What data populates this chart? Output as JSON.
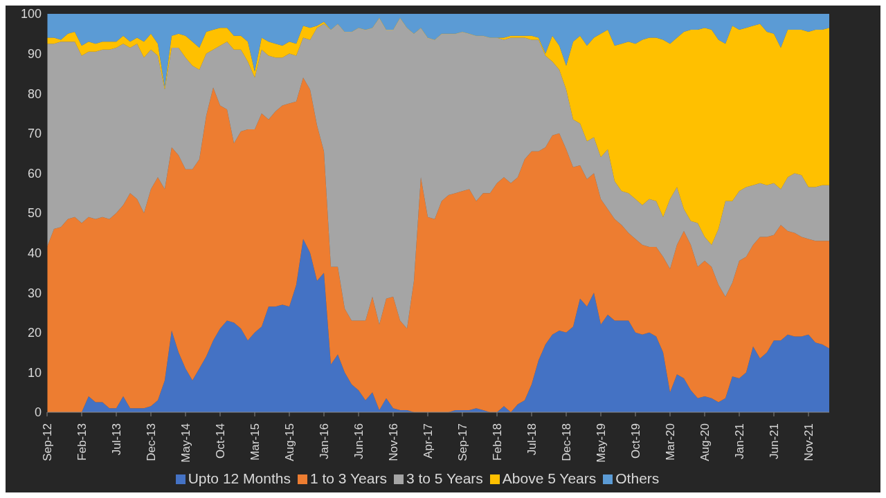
{
  "chart_data": {
    "type": "area",
    "stacked": true,
    "categories": [
      "Sep-12",
      null,
      null,
      null,
      null,
      "Feb-13",
      null,
      null,
      null,
      null,
      "Jul-13",
      null,
      null,
      null,
      null,
      "Dec-13",
      null,
      null,
      null,
      null,
      "May-14",
      null,
      null,
      null,
      null,
      "Oct-14",
      null,
      null,
      null,
      null,
      "Mar-15",
      null,
      null,
      null,
      null,
      "Aug-15",
      null,
      null,
      null,
      null,
      "Jan-16",
      null,
      null,
      null,
      null,
      "Jun-16",
      null,
      null,
      null,
      null,
      "Nov-16",
      null,
      null,
      null,
      null,
      "Apr-17",
      null,
      null,
      null,
      null,
      "Sep-17",
      null,
      null,
      null,
      null,
      "Feb-18",
      null,
      null,
      null,
      null,
      "Jul-18",
      null,
      null,
      null,
      null,
      "Dec-18",
      null,
      null,
      null,
      null,
      "May-19",
      null,
      null,
      null,
      null,
      "Oct-19",
      null,
      null,
      null,
      null,
      "Mar-20",
      null,
      null,
      null,
      null,
      "Aug-20",
      null,
      null,
      null,
      null,
      "Jan-21",
      null,
      null,
      null,
      null,
      "Jun-21",
      null,
      null,
      null,
      null,
      "Nov-21",
      null,
      null,
      null
    ],
    "series": [
      {
        "name": "Upto 12 Months",
        "color": "#4472c4",
        "values": [
          0,
          0,
          0,
          0,
          0,
          0,
          4,
          2.5,
          2.5,
          1,
          1,
          4,
          1,
          1,
          1,
          1.5,
          3,
          8,
          20.5,
          15,
          11,
          8,
          11,
          14,
          18,
          21,
          23,
          22.5,
          21,
          18,
          20,
          21.5,
          26.5,
          26.5,
          27,
          26.5,
          32,
          43.5,
          40,
          33,
          35,
          12,
          14.5,
          10,
          7,
          5.5,
          3,
          5,
          0.5,
          3.5,
          1,
          0.5,
          0.5,
          0,
          0,
          0,
          0,
          0,
          0,
          0.5,
          0.5,
          0.5,
          1,
          0.5,
          0,
          0,
          1.5,
          0,
          2,
          3,
          7,
          13,
          17,
          19.5,
          20.5,
          20,
          21.5,
          28.5,
          26.5,
          30,
          22,
          24.5,
          23,
          23,
          23,
          20,
          19.5,
          20,
          19,
          15,
          5,
          9.5,
          8.5,
          5.5,
          3.5,
          4,
          3.5,
          2.5,
          3.5,
          9,
          8.5,
          10,
          16.5,
          13.5,
          15,
          18,
          18,
          19.5,
          19,
          19,
          19.5,
          17.5,
          17,
          16
        ]
      },
      {
        "name": "1 to 3 Years",
        "color": "#ed7d31",
        "values": [
          41.5,
          46,
          46.5,
          48.5,
          49,
          47.5,
          45,
          46,
          46.5,
          47.5,
          49,
          48,
          54,
          52.5,
          49,
          54.5,
          56,
          48,
          46,
          49.5,
          50,
          53,
          52.5,
          60.5,
          63.5,
          56,
          53,
          45,
          49.5,
          53,
          51,
          53.5,
          47,
          49,
          50,
          51,
          46,
          40.5,
          41,
          39,
          30.5,
          24.5,
          22,
          16,
          16,
          17.5,
          20,
          24,
          21.5,
          25,
          28,
          22.5,
          20.5,
          33,
          59,
          49,
          48.5,
          53,
          54.5,
          54.5,
          55,
          55.5,
          52,
          54.5,
          55,
          57.5,
          57.5,
          57.5,
          57,
          60.5,
          58.5,
          52.5,
          49.5,
          50,
          49.5,
          46,
          40,
          33.5,
          32,
          30,
          31.5,
          26.5,
          25.5,
          24,
          22,
          23.5,
          22.5,
          21.5,
          22.5,
          24,
          31,
          32.5,
          37,
          36.5,
          33,
          34,
          33,
          29.5,
          25.5,
          23.5,
          29.5,
          29,
          25.5,
          30.5,
          29,
          26.5,
          29,
          26,
          26,
          25,
          24,
          25.5,
          26,
          27
        ]
      },
      {
        "name": "3 to 5 Years",
        "color": "#a5a5a5",
        "values": [
          51,
          46.5,
          46.5,
          44.5,
          44,
          42,
          41.5,
          42,
          42,
          42.5,
          41.5,
          40.5,
          36.5,
          39,
          39,
          35,
          30.5,
          25,
          25,
          27,
          28,
          26,
          22.5,
          15.5,
          9.5,
          15,
          17,
          23.5,
          20.5,
          17,
          13,
          16,
          16,
          13.5,
          12,
          12.5,
          11.5,
          10,
          12.5,
          24.5,
          32,
          59.5,
          61,
          69.5,
          72.5,
          73.5,
          73,
          67.5,
          77,
          67.5,
          67,
          76,
          75.5,
          62,
          37.5,
          45,
          45,
          42,
          40.5,
          40,
          40,
          39,
          41.5,
          39.5,
          39,
          36.5,
          34.5,
          36.5,
          35,
          30.5,
          28,
          28,
          23,
          18.5,
          16,
          15,
          12,
          10.5,
          9.5,
          9,
          10.5,
          15,
          9.5,
          8.5,
          10,
          10,
          10,
          12,
          11.5,
          10,
          17.5,
          14.5,
          5.5,
          6,
          11,
          6,
          5.5,
          14,
          24,
          20.5,
          17.5,
          17.5,
          15,
          13.5,
          13,
          13,
          9,
          13.5,
          15,
          15.5,
          13,
          13.5,
          14,
          14
        ]
      },
      {
        "name": "Above 5 Years",
        "color": "#ffc000",
        "values": [
          1.5,
          1.5,
          0.5,
          2,
          2.5,
          2.5,
          2.5,
          2,
          2,
          2,
          1.5,
          2,
          1.5,
          1.5,
          4,
          4,
          3,
          0.5,
          3,
          3.5,
          5.5,
          6,
          5.5,
          5.5,
          5,
          4.5,
          3.5,
          3.5,
          3.5,
          5,
          1.5,
          3,
          3.5,
          3.5,
          3,
          3,
          3,
          3,
          3,
          0.5,
          0.5,
          0,
          0,
          0,
          0,
          0,
          0,
          0,
          0,
          0,
          0,
          0,
          0,
          0,
          0,
          0,
          0,
          0,
          0,
          0,
          0,
          0,
          0,
          0,
          0,
          0,
          0.5,
          0.5,
          0.5,
          0.5,
          1,
          0.5,
          0.5,
          6.5,
          6,
          6,
          19.5,
          22,
          24,
          25,
          31,
          30,
          34,
          37,
          38,
          39,
          41.5,
          40.5,
          41,
          44.5,
          39,
          37.5,
          44.5,
          48,
          48.5,
          52.5,
          54,
          47.5,
          39.5,
          44,
          40.5,
          40,
          40,
          40,
          38.5,
          37.5,
          35.5,
          37,
          36,
          36.5,
          39,
          39.5,
          39,
          39.5
        ]
      },
      {
        "name": "Others",
        "color": "#5b9bd5",
        "values": [
          6,
          6,
          6.5,
          5,
          4.5,
          8,
          7,
          7.5,
          7,
          7,
          7,
          5.5,
          7,
          6,
          7,
          5,
          7.5,
          18.5,
          5.5,
          5,
          5.5,
          7,
          8.5,
          4.5,
          4,
          3.5,
          3.5,
          5.5,
          5.5,
          7,
          14.5,
          6,
          7,
          7.5,
          8,
          7,
          7.5,
          3,
          3.5,
          3,
          2,
          4,
          2.5,
          4.5,
          4.5,
          3.5,
          4,
          3.5,
          1,
          4,
          4,
          1,
          3.5,
          5,
          3.5,
          6,
          6.5,
          5,
          5,
          5,
          4.5,
          5,
          5.5,
          5.5,
          6,
          6,
          6,
          5.5,
          5.5,
          5.5,
          5.5,
          6,
          10,
          5.5,
          8,
          13,
          7,
          5.5,
          8,
          6,
          5,
          4,
          8,
          7.5,
          7,
          7.5,
          6.5,
          6,
          6,
          6.5,
          7.5,
          6,
          4.5,
          4,
          4,
          3.5,
          4,
          6.5,
          7.5,
          3,
          4,
          3.5,
          3,
          2.5,
          4.5,
          5,
          8.5,
          4,
          4,
          4,
          4.5,
          4,
          4,
          3.5
        ]
      }
    ],
    "ylim": [
      0,
      100
    ],
    "yticks": [
      0,
      10,
      20,
      30,
      40,
      50,
      60,
      70,
      80,
      90,
      100
    ],
    "grid": false,
    "legend": "bottom"
  }
}
